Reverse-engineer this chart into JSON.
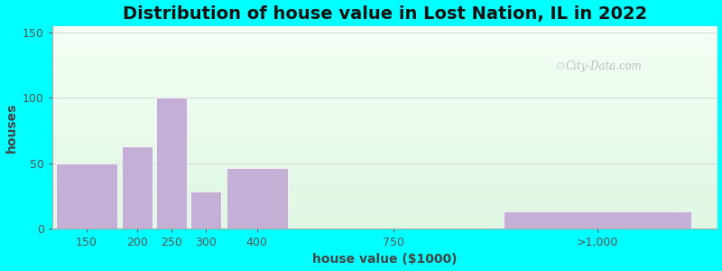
{
  "title": "Distribution of house value in Lost Nation, IL in 2022",
  "xlabel": "house value ($1000)",
  "ylabel": "houses",
  "bar_centers": [
    1.0,
    2.5,
    3.5,
    4.5,
    6.0,
    10.0,
    16.0
  ],
  "bar_heights": [
    50,
    63,
    100,
    28,
    46,
    0,
    13
  ],
  "bar_widths": [
    1.8,
    0.9,
    0.9,
    0.9,
    1.8,
    0.0,
    5.5
  ],
  "tick_positions": [
    1.0,
    2.5,
    3.5,
    4.5,
    6.0,
    10.0,
    16.0
  ],
  "tick_labels": [
    "150",
    "200",
    "250",
    "300",
    "400",
    "750",
    ">1,000"
  ],
  "bar_color": "#c4afd6",
  "ylim": [
    0,
    155
  ],
  "yticks": [
    0,
    50,
    100,
    150
  ],
  "outer_bg": "#00ffff",
  "watermark": "City-Data.com",
  "title_fontsize": 14,
  "axis_label_fontsize": 10,
  "xlim": [
    0,
    19.5
  ]
}
